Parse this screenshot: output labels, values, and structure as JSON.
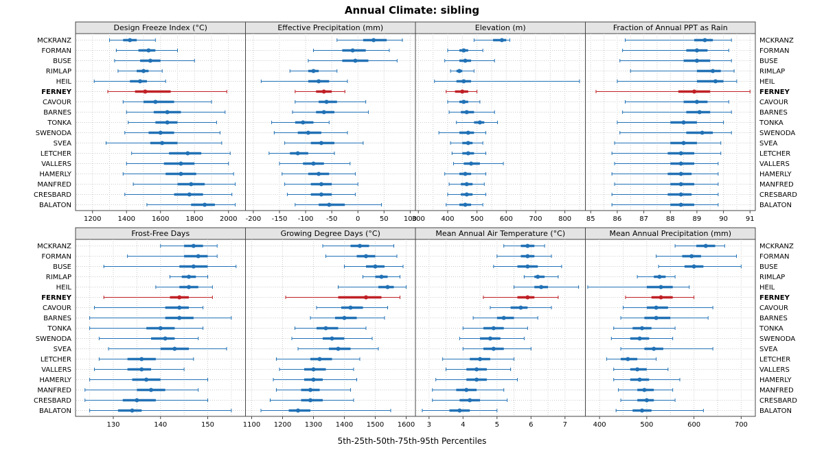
{
  "title": "Annual Climate: sibling",
  "caption": "5th-25th-50th-75th-95th Percentiles",
  "colors": {
    "series": "#2171b5",
    "highlight": "#bf2026",
    "strip_fill": "#e4e4e4",
    "border": "#444444",
    "grid": "#c9c9c9",
    "text": "#000000"
  },
  "chart_data": {
    "type": "dotplot-trellis",
    "percentile_labels": [
      "5th",
      "25th",
      "50th",
      "75th",
      "95th"
    ],
    "highlight": "FERNEY",
    "stations": [
      "MCKRANZ",
      "FORMAN",
      "BUSE",
      "RIMLAP",
      "HEIL",
      "FERNEY",
      "CAVOUR",
      "BARNES",
      "TONKA",
      "SWENODA",
      "SVEA",
      "LETCHER",
      "VALLERS",
      "HAMERLY",
      "MANFRED",
      "CRESBARD",
      "BALATON"
    ],
    "panels": [
      {
        "title": "Design Freeze Index (°C)",
        "xlim": [
          1100,
          2100
        ],
        "ticks": [
          1200,
          1400,
          1600,
          1800,
          2000
        ],
        "grid": [
          1200,
          1300,
          1400,
          1500,
          1600,
          1700,
          1800,
          1900,
          2000
        ],
        "values": [
          [
            1300,
            1380,
            1420,
            1460,
            1570
          ],
          [
            1340,
            1470,
            1530,
            1570,
            1700
          ],
          [
            1330,
            1480,
            1540,
            1600,
            1800
          ],
          [
            1350,
            1460,
            1500,
            1530,
            1610
          ],
          [
            1210,
            1420,
            1480,
            1520,
            1630
          ],
          [
            1290,
            1450,
            1510,
            1660,
            1990
          ],
          [
            1380,
            1500,
            1570,
            1680,
            1900
          ],
          [
            1400,
            1560,
            1640,
            1720,
            1980
          ],
          [
            1410,
            1570,
            1640,
            1700,
            1930
          ],
          [
            1390,
            1530,
            1600,
            1680,
            1950
          ],
          [
            1280,
            1540,
            1610,
            1700,
            1960
          ],
          [
            1430,
            1650,
            1760,
            1840,
            2010
          ],
          [
            1400,
            1620,
            1720,
            1800,
            2000
          ],
          [
            1380,
            1630,
            1720,
            1810,
            2030
          ],
          [
            1440,
            1700,
            1780,
            1860,
            2040
          ],
          [
            1390,
            1680,
            1770,
            1850,
            2020
          ],
          [
            1520,
            1780,
            1860,
            1920,
            2040
          ]
        ]
      },
      {
        "title": "Effective Precipitation (mm)",
        "xlim": [
          -215,
          110
        ],
        "ticks": [
          -200,
          -150,
          -100,
          -50,
          0,
          50,
          100
        ],
        "grid": [
          -200,
          -150,
          -100,
          -50,
          0,
          50,
          100
        ],
        "values": [
          [
            -40,
            10,
            30,
            55,
            85
          ],
          [
            -85,
            -30,
            -10,
            15,
            60
          ],
          [
            -95,
            -30,
            -5,
            20,
            75
          ],
          [
            -130,
            -95,
            -85,
            -75,
            -40
          ],
          [
            -185,
            -95,
            -75,
            -55,
            -20
          ],
          [
            -120,
            -80,
            -65,
            -50,
            -25
          ],
          [
            -120,
            -75,
            -60,
            -40,
            15
          ],
          [
            -125,
            -80,
            -65,
            -45,
            20
          ],
          [
            -165,
            -120,
            -105,
            -85,
            -55
          ],
          [
            -160,
            -115,
            -95,
            -70,
            -20
          ],
          [
            -140,
            -90,
            -70,
            -45,
            10
          ],
          [
            -170,
            -130,
            -115,
            -95,
            -45
          ],
          [
            -150,
            -105,
            -85,
            -65,
            -15
          ],
          [
            -145,
            -95,
            -75,
            -55,
            -5
          ],
          [
            -140,
            -90,
            -70,
            -50,
            0
          ],
          [
            -135,
            -90,
            -70,
            -50,
            -5
          ],
          [
            -120,
            -75,
            -55,
            -25,
            45
          ]
        ]
      },
      {
        "title": "Elevation (m)",
        "xlim": [
          290,
          870
        ],
        "ticks": [
          300,
          400,
          500,
          600,
          700,
          800
        ],
        "grid": [
          300,
          350,
          400,
          450,
          500,
          550,
          600,
          650,
          700,
          750,
          800,
          850
        ],
        "values": [
          [
            490,
            555,
            585,
            600,
            612
          ],
          [
            400,
            440,
            455,
            470,
            520
          ],
          [
            390,
            440,
            460,
            480,
            560
          ],
          [
            410,
            430,
            440,
            450,
            490
          ],
          [
            355,
            430,
            455,
            480,
            850
          ],
          [
            395,
            425,
            450,
            470,
            500
          ],
          [
            400,
            440,
            455,
            470,
            510
          ],
          [
            405,
            445,
            465,
            490,
            560
          ],
          [
            430,
            490,
            510,
            525,
            570
          ],
          [
            370,
            440,
            470,
            490,
            530
          ],
          [
            410,
            450,
            470,
            485,
            520
          ],
          [
            415,
            450,
            470,
            490,
            530
          ],
          [
            420,
            455,
            480,
            510,
            590
          ],
          [
            390,
            440,
            460,
            480,
            530
          ],
          [
            405,
            445,
            465,
            485,
            525
          ],
          [
            400,
            445,
            465,
            485,
            530
          ],
          [
            395,
            440,
            460,
            480,
            520
          ]
        ]
      },
      {
        "title": "Fraction of Annual PPT as Rain",
        "xlim": [
          84.8,
          91.2
        ],
        "ticks": [
          85,
          86,
          87,
          88,
          89,
          90,
          91
        ],
        "grid": [
          85,
          85.5,
          86,
          86.5,
          87,
          87.5,
          88,
          88.5,
          89,
          89.5,
          90,
          90.5,
          91
        ],
        "values": [
          [
            86.3,
            88.9,
            89.3,
            89.6,
            90.3
          ],
          [
            86.2,
            88.6,
            89.0,
            89.4,
            90.2
          ],
          [
            86.1,
            88.5,
            89.0,
            89.5,
            90.3
          ],
          [
            86.5,
            89.0,
            89.6,
            89.9,
            90.4
          ],
          [
            86.0,
            89.0,
            89.7,
            90.0,
            90.5
          ],
          [
            85.2,
            88.3,
            88.9,
            89.5,
            91.0
          ],
          [
            86.3,
            88.5,
            89.0,
            89.4,
            90.2
          ],
          [
            86.2,
            88.6,
            89.1,
            89.5,
            90.3
          ],
          [
            86.0,
            88.0,
            88.5,
            89.0,
            90.0
          ],
          [
            86.1,
            88.6,
            89.2,
            89.6,
            90.3
          ],
          [
            85.9,
            88.0,
            88.5,
            89.0,
            89.9
          ],
          [
            85.8,
            87.9,
            88.4,
            88.9,
            89.9
          ],
          [
            85.9,
            88.0,
            88.4,
            88.9,
            89.8
          ],
          [
            85.8,
            87.9,
            88.4,
            88.8,
            89.8
          ],
          [
            85.9,
            88.0,
            88.4,
            88.9,
            89.8
          ],
          [
            85.8,
            87.9,
            88.4,
            88.8,
            89.8
          ],
          [
            85.8,
            88.0,
            88.4,
            88.9,
            89.8
          ]
        ]
      },
      {
        "title": "Frost-Free Days",
        "xlim": [
          122,
          158
        ],
        "ticks": [
          130,
          140,
          150
        ],
        "grid": [
          125,
          130,
          135,
          140,
          145,
          150,
          155
        ],
        "values": [
          [
            140,
            145,
            147,
            149,
            152
          ],
          [
            133,
            145,
            148,
            150,
            152
          ],
          [
            128,
            144,
            147,
            150,
            156
          ],
          [
            142,
            144.5,
            146,
            147.5,
            150
          ],
          [
            139,
            144,
            146,
            148,
            151
          ],
          [
            128,
            142,
            144,
            146,
            151
          ],
          [
            126,
            141,
            144,
            146,
            149
          ],
          [
            125,
            141,
            144,
            147,
            155
          ],
          [
            125,
            137,
            140,
            143,
            149
          ],
          [
            127,
            138,
            141,
            143,
            148
          ],
          [
            129,
            140,
            143,
            146,
            154
          ],
          [
            127,
            133,
            136,
            139,
            147
          ],
          [
            126,
            133,
            136,
            138,
            145
          ],
          [
            125,
            134,
            137,
            140,
            150
          ],
          [
            124,
            135,
            138,
            141,
            148
          ],
          [
            124,
            132,
            135,
            139,
            150
          ],
          [
            125,
            131,
            134,
            136,
            155
          ]
        ]
      },
      {
        "title": "Growing Degree Days (°C)",
        "xlim": [
          1080,
          1630
        ],
        "ticks": [
          1100,
          1200,
          1300,
          1400,
          1500,
          1600
        ],
        "grid": [
          1100,
          1200,
          1300,
          1400,
          1500,
          1600
        ],
        "values": [
          [
            1330,
            1420,
            1450,
            1480,
            1560
          ],
          [
            1340,
            1440,
            1470,
            1500,
            1570
          ],
          [
            1400,
            1470,
            1500,
            1530,
            1590
          ],
          [
            1460,
            1500,
            1520,
            1540,
            1580
          ],
          [
            1380,
            1510,
            1540,
            1560,
            1600
          ],
          [
            1210,
            1380,
            1470,
            1520,
            1580
          ],
          [
            1310,
            1390,
            1420,
            1460,
            1540
          ],
          [
            1290,
            1370,
            1400,
            1440,
            1530
          ],
          [
            1240,
            1310,
            1340,
            1380,
            1470
          ],
          [
            1230,
            1330,
            1360,
            1400,
            1490
          ],
          [
            1250,
            1350,
            1380,
            1420,
            1510
          ],
          [
            1180,
            1290,
            1320,
            1360,
            1450
          ],
          [
            1190,
            1270,
            1300,
            1340,
            1430
          ],
          [
            1170,
            1270,
            1300,
            1330,
            1440
          ],
          [
            1180,
            1260,
            1290,
            1320,
            1420
          ],
          [
            1160,
            1260,
            1290,
            1330,
            1430
          ],
          [
            1130,
            1220,
            1250,
            1290,
            1550
          ]
        ]
      },
      {
        "title": "Mean Annual Air Temperature (°C)",
        "xlim": [
          2.6,
          7.6
        ],
        "ticks": [
          3,
          4,
          5,
          6,
          7
        ],
        "grid": [
          3,
          3.5,
          4,
          4.5,
          5,
          5.5,
          6,
          6.5,
          7
        ],
        "values": [
          [
            5.2,
            5.7,
            5.9,
            6.1,
            6.4
          ],
          [
            5.0,
            5.7,
            5.9,
            6.1,
            6.6
          ],
          [
            4.9,
            5.6,
            5.9,
            6.2,
            6.9
          ],
          [
            5.8,
            6.1,
            6.2,
            6.4,
            6.8
          ],
          [
            5.5,
            6.1,
            6.3,
            6.5,
            7.4
          ],
          [
            4.6,
            5.6,
            5.9,
            6.1,
            6.8
          ],
          [
            4.8,
            5.4,
            5.7,
            5.9,
            6.6
          ],
          [
            4.3,
            5.0,
            5.2,
            5.5,
            6.2
          ],
          [
            4.0,
            4.6,
            4.9,
            5.2,
            5.9
          ],
          [
            3.9,
            4.5,
            4.8,
            5.1,
            5.8
          ],
          [
            4.0,
            4.6,
            4.9,
            5.2,
            6.0
          ],
          [
            3.4,
            4.2,
            4.5,
            4.8,
            5.5
          ],
          [
            3.5,
            4.1,
            4.4,
            4.7,
            5.4
          ],
          [
            3.2,
            4.1,
            4.4,
            4.7,
            5.6
          ],
          [
            3.1,
            3.8,
            4.1,
            4.4,
            5.2
          ],
          [
            3.1,
            3.9,
            4.2,
            4.5,
            5.3
          ],
          [
            2.8,
            3.6,
            3.9,
            4.2,
            5.0
          ]
        ]
      },
      {
        "title": "Mean Annual Precipitation (mm)",
        "xlim": [
          370,
          730
        ],
        "ticks": [
          400,
          500,
          600,
          700
        ],
        "grid": [
          400,
          450,
          500,
          550,
          600,
          650,
          700
        ],
        "values": [
          [
            560,
            605,
            625,
            645,
            665
          ],
          [
            520,
            575,
            595,
            615,
            690
          ],
          [
            525,
            580,
            600,
            620,
            700
          ],
          [
            480,
            515,
            527,
            540,
            560
          ],
          [
            375,
            500,
            530,
            555,
            590
          ],
          [
            455,
            510,
            530,
            555,
            600
          ],
          [
            450,
            500,
            520,
            545,
            640
          ],
          [
            445,
            495,
            520,
            550,
            630
          ],
          [
            430,
            470,
            490,
            510,
            560
          ],
          [
            425,
            465,
            485,
            505,
            555
          ],
          [
            445,
            495,
            515,
            535,
            640
          ],
          [
            415,
            445,
            460,
            480,
            520
          ],
          [
            430,
            465,
            480,
            500,
            545
          ],
          [
            430,
            465,
            485,
            505,
            570
          ],
          [
            440,
            480,
            495,
            515,
            555
          ],
          [
            445,
            480,
            500,
            515,
            560
          ],
          [
            435,
            470,
            490,
            510,
            620
          ]
        ]
      }
    ]
  }
}
